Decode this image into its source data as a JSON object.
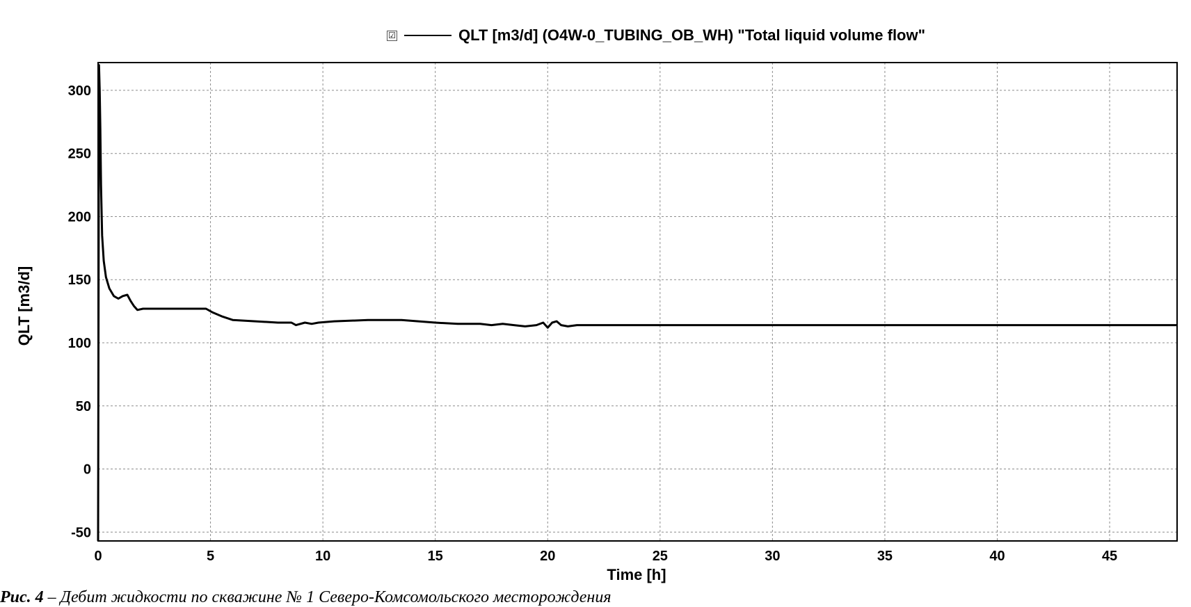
{
  "legend": {
    "checked_symbol": "☑",
    "label": "QLT [m3/d] (O4W-0_TUBING_OB_WH) \"Total liquid volume flow\""
  },
  "caption": {
    "prefix": "Рис. 4",
    "text": " – Дебит жидкости по скважине № 1 Северо-Комсомольского месторождения"
  },
  "chart_data": {
    "type": "line",
    "title": "",
    "xlabel": "Time [h]",
    "ylabel": "QLT [m3/d]",
    "xlim": [
      0,
      48
    ],
    "ylim": [
      -57,
      322
    ],
    "xticks": [
      0,
      5,
      10,
      15,
      20,
      25,
      30,
      35,
      40,
      45
    ],
    "yticks": [
      -50,
      0,
      50,
      100,
      150,
      200,
      250,
      300
    ],
    "grid": true,
    "legend_position": "top-center",
    "series": [
      {
        "name": "QLT [m3/d] (O4W-0_TUBING_OB_WH) \"Total liquid volume flow\"",
        "color": "#000000",
        "x": [
          0,
          0.04,
          0.07,
          0.1,
          0.13,
          0.18,
          0.25,
          0.35,
          0.5,
          0.7,
          0.9,
          1.1,
          1.3,
          1.45,
          1.6,
          1.75,
          2.0,
          3.0,
          4.0,
          4.8,
          5.1,
          5.5,
          6.0,
          7.0,
          8.0,
          8.6,
          8.8,
          9.2,
          9.5,
          9.8,
          10.5,
          12.0,
          13.5,
          15.0,
          16.0,
          17.0,
          17.5,
          18.0,
          18.5,
          19.0,
          19.5,
          19.8,
          20.0,
          20.2,
          20.4,
          20.6,
          20.9,
          21.3,
          22.0,
          30.0,
          40.0,
          48.0
        ],
        "y": [
          -57,
          320,
          300,
          270,
          225,
          185,
          165,
          152,
          143,
          137,
          135,
          137,
          138,
          133,
          129,
          126,
          127,
          127,
          127,
          127,
          124,
          121,
          118,
          117,
          116,
          116,
          114,
          116,
          115,
          116,
          117,
          118,
          118,
          116,
          115,
          115,
          114,
          115,
          114,
          113,
          114,
          116,
          112,
          116,
          117,
          114,
          113,
          114,
          114,
          114,
          114,
          114
        ]
      }
    ]
  }
}
